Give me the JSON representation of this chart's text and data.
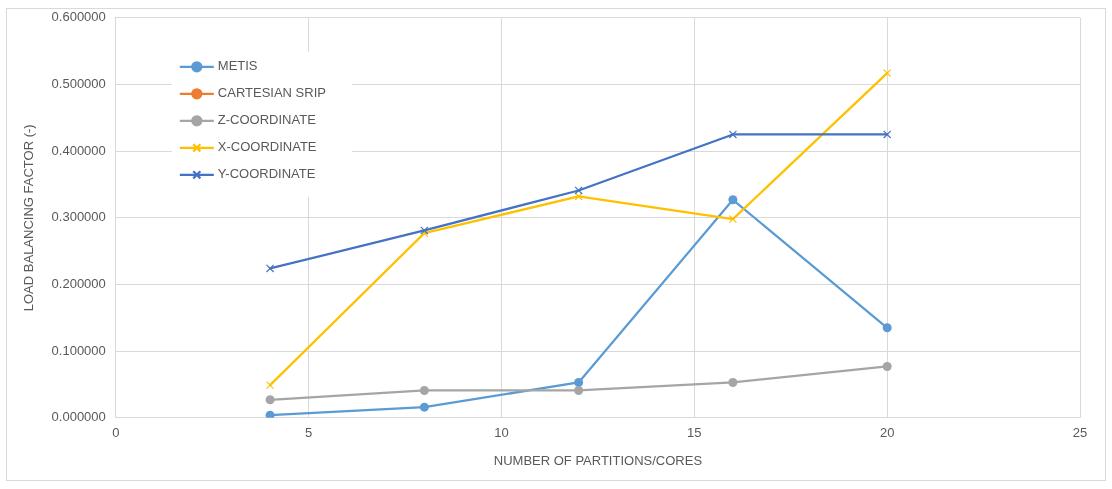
{
  "chart_data": {
    "type": "line",
    "xlabel": "NUMBER OF PARTITIONS/CORES",
    "ylabel": "LOAD BALANCING FACTOR (-)",
    "x": [
      4,
      8,
      12,
      16,
      20
    ],
    "series": [
      {
        "name": "METIS",
        "color": "#5b9bd5",
        "marker": "circle",
        "values": [
          0.004,
          0.016,
          0.053,
          0.327,
          0.135
        ]
      },
      {
        "name": "CARTESIAN SRIP",
        "color": "#ed7d31",
        "marker": "circle",
        "values": [
          null,
          null,
          null,
          null,
          null
        ]
      },
      {
        "name": "Z-COORDINATE",
        "color": "#a5a5a5",
        "marker": "circle",
        "values": [
          0.027,
          0.041,
          0.041,
          0.053,
          0.077
        ]
      },
      {
        "name": "X-COORDINATE",
        "color": "#ffc000",
        "marker": "cross",
        "values": [
          0.049,
          0.277,
          0.332,
          0.298,
          0.517
        ]
      },
      {
        "name": "Y-COORDINATE",
        "color": "#4472c4",
        "marker": "cross",
        "values": [
          0.224,
          0.281,
          0.341,
          0.425,
          0.425
        ]
      }
    ],
    "xlim": [
      0,
      25
    ],
    "xticks": [
      0,
      5,
      10,
      15,
      20,
      25
    ],
    "ylim": [
      0,
      0.6
    ],
    "yticks": [
      {
        "value": 0,
        "label": "0.000000"
      },
      {
        "value": 0.1,
        "label": "0.100000"
      },
      {
        "value": 0.2,
        "label": "0.200000"
      },
      {
        "value": 0.3,
        "label": "0.300000"
      },
      {
        "value": 0.4,
        "label": "0.400000"
      },
      {
        "value": 0.5,
        "label": "0.500000"
      },
      {
        "value": 0.6,
        "label": "0.600000"
      }
    ],
    "grid": true,
    "legend": "top left",
    "line_style": "solid"
  }
}
